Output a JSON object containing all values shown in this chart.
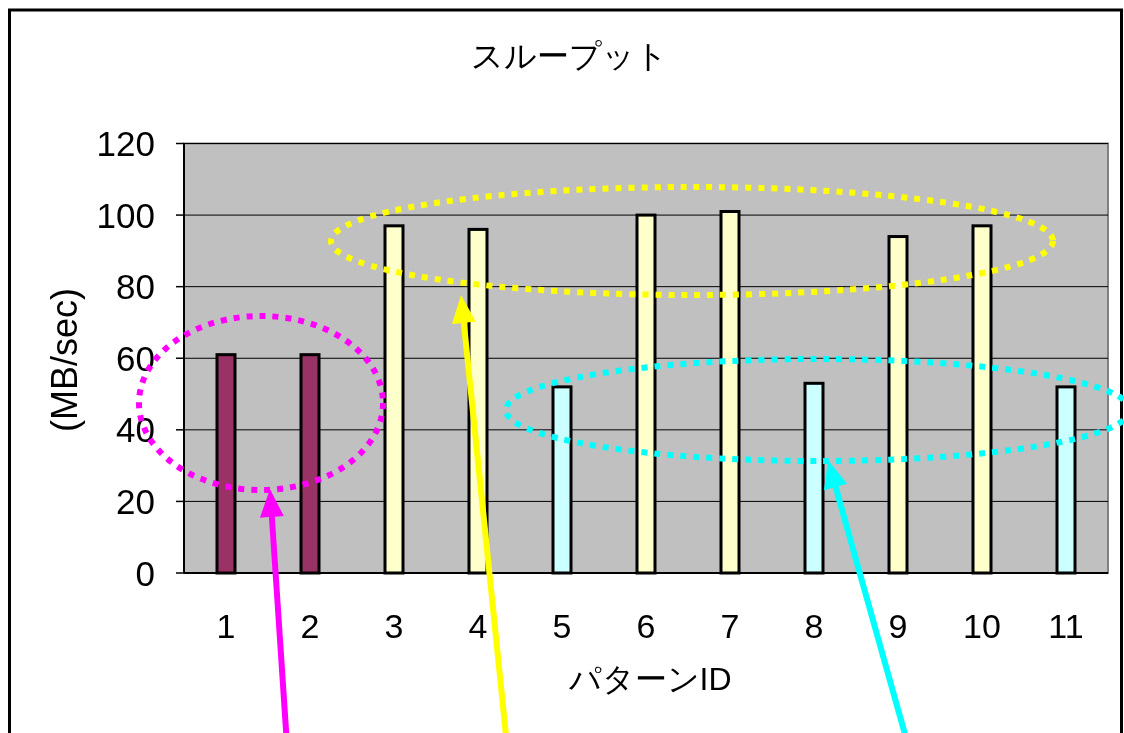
{
  "chart_data": {
    "type": "bar",
    "title": "スループット",
    "xlabel": "パターンID",
    "ylabel": "(MB/sec)",
    "categories": [
      "1",
      "2",
      "3",
      "4",
      "5",
      "6",
      "7",
      "8",
      "9",
      "10",
      "11"
    ],
    "values": [
      61,
      61,
      97,
      96,
      52,
      100,
      101,
      53,
      94,
      97,
      52
    ],
    "colors": [
      "#993366",
      "#993366",
      "#ffffcc",
      "#ffffcc",
      "#ccffff",
      "#ffffcc",
      "#ffffcc",
      "#ccffff",
      "#ffffcc",
      "#ffffcc",
      "#ccffff"
    ],
    "ylim": [
      0,
      120
    ],
    "yticks": [
      0,
      20,
      40,
      60,
      80,
      100,
      120
    ],
    "grid": "y"
  }
}
